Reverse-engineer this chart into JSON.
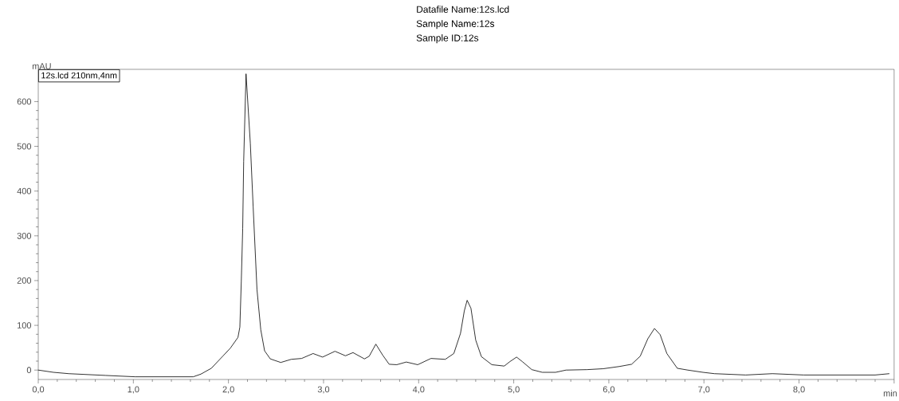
{
  "chart_data": {
    "type": "line",
    "title": "Datafile Name:12s.lcd",
    "annotations": [
      "Sample Name:12s",
      "Sample ID:12s"
    ],
    "xlabel": "min",
    "ylabel": "mAU",
    "xlim": [
      0,
      9
    ],
    "ylim": [
      -21,
      672
    ],
    "xticks": [
      {
        "value": 0,
        "label": "0,0"
      },
      {
        "value": 1,
        "label": "1,0"
      },
      {
        "value": 2,
        "label": "2,0"
      },
      {
        "value": 3,
        "label": "3,0"
      },
      {
        "value": 4,
        "label": "4,0"
      },
      {
        "value": 5,
        "label": "5,0"
      },
      {
        "value": 6,
        "label": "6,0"
      },
      {
        "value": 7,
        "label": "7,0"
      },
      {
        "value": 8,
        "label": "8,0"
      },
      {
        "value": 9,
        "label": null
      }
    ],
    "yticks": [
      0,
      100,
      200,
      300,
      400,
      500,
      600
    ],
    "legend": "top left",
    "marker": "none",
    "line_style": "solid",
    "series": [
      {
        "name": "12s.lcd 210nm,4nm",
        "color": "#000000",
        "x": [
          0,
          0.16,
          0.32,
          0.71,
          1.02,
          1.63,
          1.71,
          1.82,
          1.94,
          2.02,
          2.1,
          2.12,
          2.135,
          2.15,
          2.16,
          2.185,
          2.23,
          2.26,
          2.3,
          2.34,
          2.38,
          2.44,
          2.55,
          2.66,
          2.77,
          2.89,
          2.99,
          3.12,
          3.23,
          3.31,
          3.43,
          3.48,
          3.55,
          3.62,
          3.69,
          3.77,
          3.87,
          3.99,
          4.13,
          4.28,
          4.37,
          4.44,
          4.48,
          4.51,
          4.55,
          4.6,
          4.66,
          4.77,
          4.9,
          4.96,
          5.03,
          5.09,
          5.19,
          5.3,
          5.44,
          5.55,
          5.77,
          5.94,
          6.11,
          6.24,
          6.33,
          6.41,
          6.48,
          6.54,
          6.61,
          6.72,
          6.83,
          6.99,
          7.11,
          7.44,
          7.72,
          8.05,
          8.8,
          8.95
        ],
        "values": [
          0,
          -5,
          -8,
          -12,
          -15,
          -15,
          -9,
          4,
          31,
          49,
          73,
          96,
          198,
          317,
          466,
          662,
          507,
          364,
          180,
          90,
          43,
          25,
          17,
          24,
          26,
          37,
          29,
          42,
          32,
          39,
          25,
          31,
          58,
          34,
          13,
          12,
          18,
          12,
          26,
          24,
          37,
          82,
          132,
          156,
          138,
          67,
          30,
          12,
          9,
          19,
          29,
          19,
          1,
          -5,
          -5,
          0,
          1,
          3,
          8,
          13,
          31,
          70,
          93,
          79,
          37,
          4,
          0,
          -5,
          -8,
          -11,
          -8,
          -11,
          -11,
          -8
        ]
      }
    ]
  }
}
